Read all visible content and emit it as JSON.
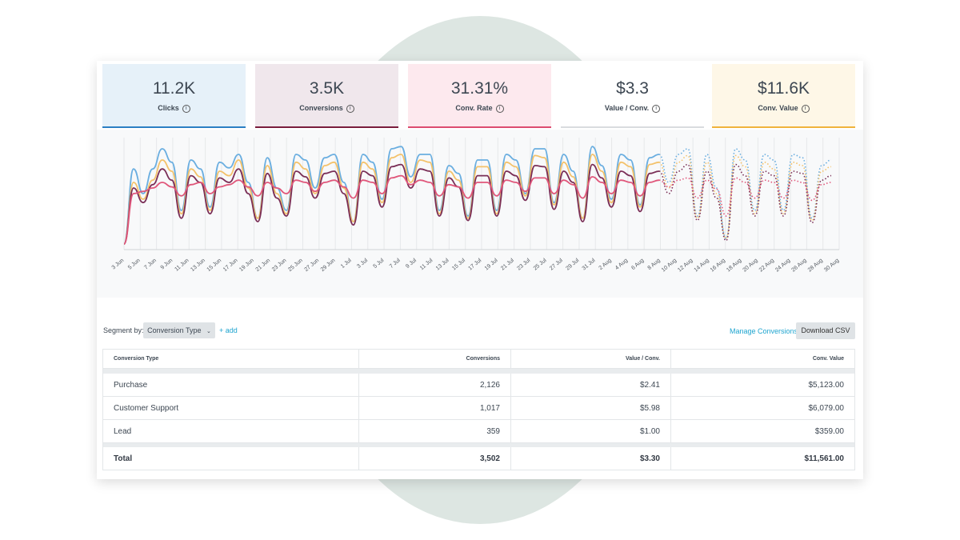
{
  "kpis": [
    {
      "value": "11.2K",
      "label": "Clicks",
      "bg": "#e6f1f9",
      "bar": "#2b7fc4"
    },
    {
      "value": "3.5K",
      "label": "Conversions",
      "bg": "#f0e7ec",
      "bar": "#7a1c3c"
    },
    {
      "value": "31.31%",
      "label": "Conv. Rate",
      "bg": "#fde9ee",
      "bar": "#dd4d70"
    },
    {
      "value": "$3.3",
      "label": "Value / Conv.",
      "bg": "#ffffff",
      "bar": "#d9dcdf"
    },
    {
      "value": "$11.6K",
      "label": "Conv. Value",
      "bg": "#fef7e7",
      "bar": "#f0b33c"
    }
  ],
  "info_icon": "info-icon",
  "chart_data": {
    "type": "line",
    "x_labels": [
      "3 Jun",
      "5 Jun",
      "7 Jun",
      "9 Jun",
      "11 Jun",
      "13 Jun",
      "15 Jun",
      "17 Jun",
      "19 Jun",
      "21 Jun",
      "23 Jun",
      "25 Jun",
      "27 Jun",
      "29 Jun",
      "1 Jul",
      "3 Jul",
      "5 Jul",
      "7 Jul",
      "9 Jul",
      "11 Jul",
      "13 Jul",
      "15 Jul",
      "17 Jul",
      "19 Jul",
      "21 Jul",
      "23 Jul",
      "25 Jul",
      "27 Jul",
      "29 Jul",
      "31 Jul",
      "2 Aug",
      "4 Aug",
      "6 Aug",
      "8 Aug",
      "10 Aug",
      "12 Aug",
      "14 Aug",
      "16 Aug",
      "18 Aug",
      "20 Aug",
      "22 Aug",
      "24 Aug",
      "26 Aug",
      "28 Aug",
      "30 Aug"
    ],
    "actual_through_label": "8 Aug",
    "series": [
      {
        "color": "#6aaee0",
        "values": [
          0.05,
          0.72,
          0.5,
          0.72,
          0.9,
          0.78,
          0.35,
          0.8,
          0.72,
          0.38,
          0.78,
          0.73,
          0.85,
          0.6,
          0.28,
          0.82,
          0.55,
          0.35,
          0.85,
          0.8,
          0.55,
          0.82,
          0.85,
          0.6,
          0.25,
          0.85,
          0.78,
          0.45,
          0.9,
          0.92,
          0.65,
          0.85,
          0.85,
          0.35,
          0.75,
          0.68,
          0.3,
          0.8,
          0.8,
          0.35,
          0.85,
          0.8,
          0.5,
          0.9,
          0.9,
          0.42,
          0.85,
          0.7,
          0.28,
          0.92,
          0.75,
          0.45,
          0.85,
          0.8,
          0.4,
          0.82,
          0.85,
          0.6,
          0.85,
          0.9,
          0.3,
          0.85,
          0.55,
          0.1,
          0.9,
          0.8,
          0.35,
          0.85,
          0.8,
          0.35,
          0.85,
          0.82,
          0.28,
          0.75,
          0.8
        ]
      },
      {
        "color": "#f3c26b",
        "values": [
          0.05,
          0.6,
          0.45,
          0.62,
          0.8,
          0.7,
          0.32,
          0.72,
          0.65,
          0.35,
          0.7,
          0.66,
          0.8,
          0.55,
          0.28,
          0.75,
          0.5,
          0.32,
          0.78,
          0.72,
          0.5,
          0.75,
          0.78,
          0.55,
          0.25,
          0.78,
          0.72,
          0.42,
          0.82,
          0.85,
          0.6,
          0.8,
          0.78,
          0.32,
          0.7,
          0.62,
          0.28,
          0.74,
          0.74,
          0.32,
          0.78,
          0.74,
          0.48,
          0.84,
          0.82,
          0.4,
          0.78,
          0.65,
          0.28,
          0.85,
          0.7,
          0.42,
          0.78,
          0.74,
          0.38,
          0.76,
          0.78,
          0.55,
          0.78,
          0.84,
          0.28,
          0.78,
          0.5,
          0.1,
          0.84,
          0.74,
          0.32,
          0.78,
          0.72,
          0.32,
          0.78,
          0.75,
          0.26,
          0.7,
          0.74
        ]
      },
      {
        "color": "#7a2e56",
        "values": [
          0.05,
          0.55,
          0.42,
          0.58,
          0.72,
          0.62,
          0.28,
          0.66,
          0.6,
          0.32,
          0.64,
          0.6,
          0.72,
          0.5,
          0.25,
          0.68,
          0.46,
          0.3,
          0.7,
          0.65,
          0.46,
          0.68,
          0.7,
          0.5,
          0.22,
          0.7,
          0.66,
          0.38,
          0.74,
          0.76,
          0.55,
          0.72,
          0.7,
          0.3,
          0.64,
          0.56,
          0.26,
          0.66,
          0.66,
          0.3,
          0.7,
          0.66,
          0.44,
          0.75,
          0.74,
          0.36,
          0.7,
          0.6,
          0.25,
          0.76,
          0.64,
          0.38,
          0.7,
          0.66,
          0.34,
          0.68,
          0.7,
          0.5,
          0.7,
          0.76,
          0.26,
          0.7,
          0.46,
          0.08,
          0.76,
          0.66,
          0.3,
          0.7,
          0.66,
          0.3,
          0.7,
          0.68,
          0.24,
          0.62,
          0.66
        ]
      },
      {
        "color": "#e0567a",
        "values": [
          0.05,
          0.5,
          0.52,
          0.55,
          0.6,
          0.56,
          0.48,
          0.58,
          0.6,
          0.5,
          0.56,
          0.58,
          0.62,
          0.56,
          0.48,
          0.6,
          0.55,
          0.5,
          0.62,
          0.6,
          0.52,
          0.6,
          0.62,
          0.56,
          0.46,
          0.62,
          0.6,
          0.5,
          0.64,
          0.66,
          0.58,
          0.62,
          0.6,
          0.48,
          0.58,
          0.56,
          0.46,
          0.6,
          0.6,
          0.48,
          0.62,
          0.6,
          0.52,
          0.64,
          0.64,
          0.5,
          0.62,
          0.58,
          0.46,
          0.65,
          0.6,
          0.5,
          0.62,
          0.6,
          0.48,
          0.6,
          0.62,
          0.56,
          0.62,
          0.64,
          0.46,
          0.62,
          0.54,
          0.3,
          0.64,
          0.6,
          0.46,
          0.62,
          0.6,
          0.46,
          0.62,
          0.6,
          0.44,
          0.58,
          0.6
        ]
      }
    ]
  },
  "segment": {
    "label": "Segment by:",
    "value": "Conversion Type",
    "add": "+ add"
  },
  "actions": {
    "manage": "Manage Conversions",
    "download": "Download CSV"
  },
  "table": {
    "headers": [
      "Conversion Type",
      "Conversions",
      "Value / Conv.",
      "Conv. Value"
    ],
    "rows": [
      [
        "Purchase",
        "2,126",
        "$2.41",
        "$5,123.00"
      ],
      [
        "Customer Support",
        "1,017",
        "$5.98",
        "$6,079.00"
      ],
      [
        "Lead",
        "359",
        "$1.00",
        "$359.00"
      ]
    ],
    "total": [
      "Total",
      "3,502",
      "$3.30",
      "$11,561.00"
    ]
  }
}
